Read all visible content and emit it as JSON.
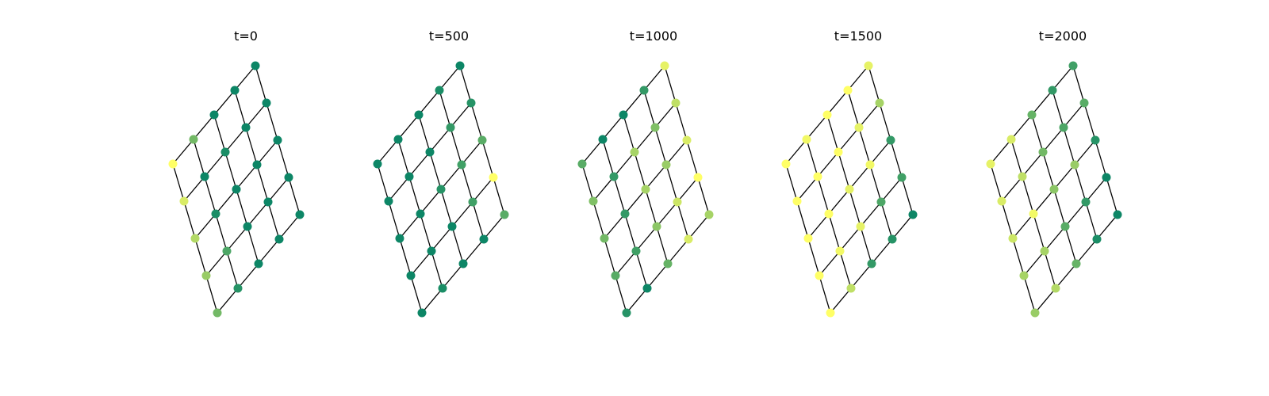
{
  "figure": {
    "panels": [
      {
        "title": "t=0"
      },
      {
        "title": "t=500"
      },
      {
        "title": "t=1000"
      },
      {
        "title": "t=1500"
      },
      {
        "title": "t=2000"
      }
    ]
  },
  "chart_data": {
    "type": "network-grid",
    "grid": {
      "rows": 5,
      "cols": 5
    },
    "colormap": "summer",
    "colormap_low": "#008066",
    "colormap_high": "#ffff66",
    "node_values_description_order": "rows top-left to bottom-right along grid index (i, j)",
    "snapshots": [
      {
        "label": "t=0",
        "node_values": [
          [
            1.0,
            0.45,
            0.05,
            0.05,
            0.05
          ],
          [
            0.85,
            0.05,
            0.1,
            0.05,
            0.05
          ],
          [
            0.7,
            0.1,
            0.05,
            0.05,
            0.05
          ],
          [
            0.6,
            0.3,
            0.05,
            0.05,
            0.05
          ],
          [
            0.45,
            0.15,
            0.05,
            0.05,
            0.05
          ]
        ]
      },
      {
        "label": "t=500",
        "node_values": [
          [
            0.05,
            0.05,
            0.05,
            0.1,
            0.05
          ],
          [
            0.05,
            0.05,
            0.05,
            0.2,
            0.15
          ],
          [
            0.05,
            0.05,
            0.15,
            0.25,
            0.35
          ],
          [
            0.05,
            0.05,
            0.05,
            0.25,
            1.0
          ],
          [
            0.05,
            0.1,
            0.05,
            0.05,
            0.35
          ]
        ]
      },
      {
        "label": "t=1000",
        "node_values": [
          [
            0.35,
            0.05,
            0.05,
            0.2,
            0.9
          ],
          [
            0.5,
            0.2,
            0.65,
            0.5,
            0.75
          ],
          [
            0.45,
            0.2,
            0.65,
            0.6,
            0.85
          ],
          [
            0.35,
            0.25,
            0.55,
            0.8,
            1.0
          ],
          [
            0.15,
            0.05,
            0.4,
            0.85,
            0.65
          ]
        ]
      },
      {
        "label": "t=1500",
        "node_values": [
          [
            1.0,
            0.95,
            1.0,
            1.0,
            0.9
          ],
          [
            1.0,
            1.0,
            1.0,
            0.9,
            0.65
          ],
          [
            1.0,
            1.0,
            0.9,
            0.95,
            0.2
          ],
          [
            1.0,
            0.95,
            0.9,
            0.3,
            0.25
          ],
          [
            1.0,
            0.75,
            0.2,
            0.15,
            0.05
          ]
        ]
      },
      {
        "label": "t=2000",
        "node_values": [
          [
            0.9,
            0.85,
            0.4,
            0.2,
            0.25
          ],
          [
            0.85,
            0.75,
            0.45,
            0.3,
            0.35
          ],
          [
            0.8,
            0.95,
            0.55,
            0.6,
            0.15
          ],
          [
            0.65,
            0.65,
            0.35,
            0.2,
            0.05
          ],
          [
            0.6,
            0.7,
            0.4,
            0.1,
            0.05
          ]
        ]
      }
    ]
  }
}
